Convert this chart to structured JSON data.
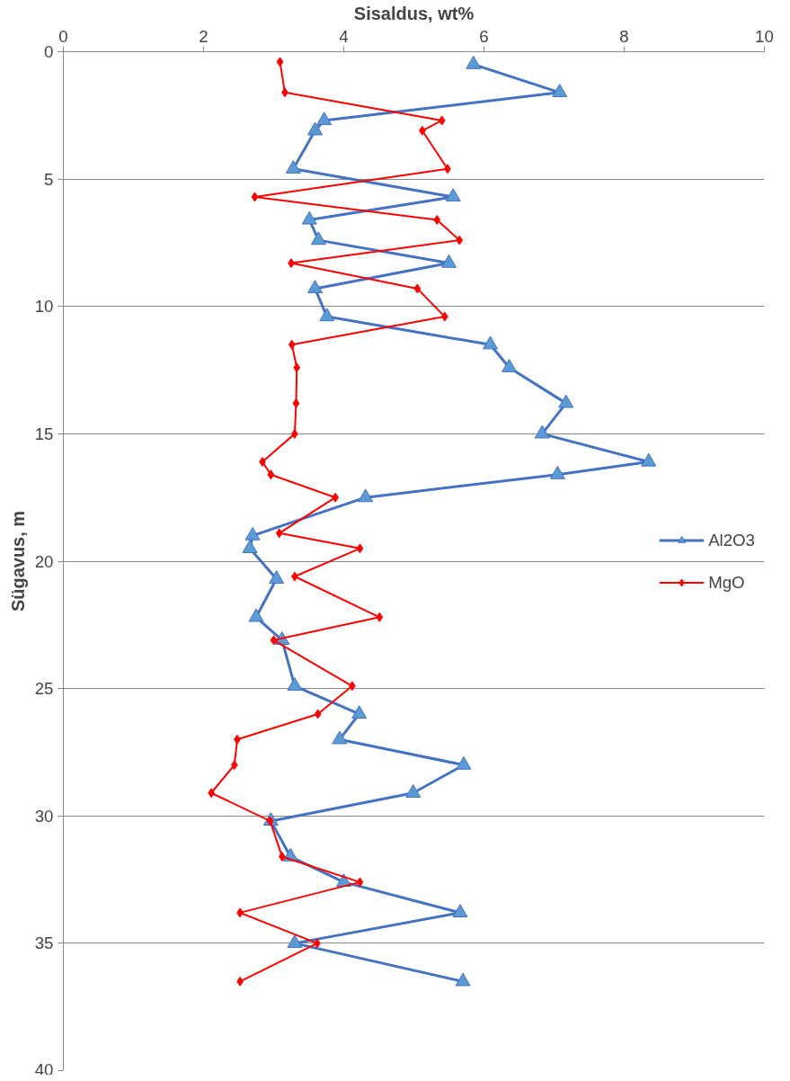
{
  "chart_data": {
    "type": "line",
    "xlabel": "Sisaldus, wt%",
    "ylabel": "Sügavus, m",
    "xlim": [
      0,
      10
    ],
    "xticks": [
      0,
      2,
      4,
      6,
      8,
      10
    ],
    "ylim": [
      40,
      0
    ],
    "yticks": [
      0,
      5,
      10,
      15,
      20,
      25,
      30,
      35,
      40
    ],
    "grid": "y",
    "legend": "right",
    "series": [
      {
        "name": "Al2O3",
        "color": "#4472c4",
        "marker": "triangle",
        "x": [
          5.85,
          7.08,
          3.72,
          3.59,
          3.28,
          5.56,
          3.51,
          3.64,
          5.5,
          3.59,
          3.76,
          6.09,
          6.36,
          7.17,
          6.83,
          8.35,
          7.05,
          4.31,
          2.7,
          2.66,
          3.04,
          2.75,
          3.12,
          3.3,
          4.22,
          3.94,
          5.71,
          4.99,
          2.96,
          3.24,
          4.0,
          5.66,
          3.3,
          5.7
        ],
        "values": [
          0.5,
          1.6,
          2.7,
          3.1,
          4.6,
          5.7,
          6.6,
          7.4,
          8.3,
          9.3,
          10.4,
          11.5,
          12.4,
          13.8,
          15.0,
          16.1,
          16.6,
          17.5,
          19.0,
          19.5,
          20.7,
          22.2,
          23.1,
          24.9,
          26.0,
          27.0,
          28.0,
          29.1,
          30.2,
          31.6,
          32.6,
          33.8,
          35.0,
          36.5
        ]
      },
      {
        "name": "MgO",
        "color": "#ff0000",
        "marker": "diamond",
        "x": [
          3.09,
          3.16,
          5.4,
          5.12,
          5.48,
          2.73,
          5.33,
          5.65,
          3.25,
          5.05,
          5.44,
          3.26,
          3.33,
          3.32,
          3.3,
          2.84,
          2.96,
          3.88,
          3.08,
          4.23,
          3.3,
          4.51,
          3.0,
          4.12,
          3.63,
          2.48,
          2.44,
          2.11,
          2.95,
          3.12,
          4.23,
          2.52,
          3.62,
          2.52
        ],
        "values": [
          0.4,
          1.6,
          2.7,
          3.1,
          4.6,
          5.7,
          6.6,
          7.4,
          8.3,
          9.3,
          10.4,
          11.5,
          12.4,
          13.8,
          15.0,
          16.1,
          16.6,
          17.5,
          18.9,
          19.5,
          20.6,
          22.2,
          23.1,
          24.9,
          26.0,
          27.0,
          28.0,
          29.1,
          30.2,
          31.6,
          32.6,
          33.8,
          35.0,
          36.5
        ]
      }
    ]
  }
}
